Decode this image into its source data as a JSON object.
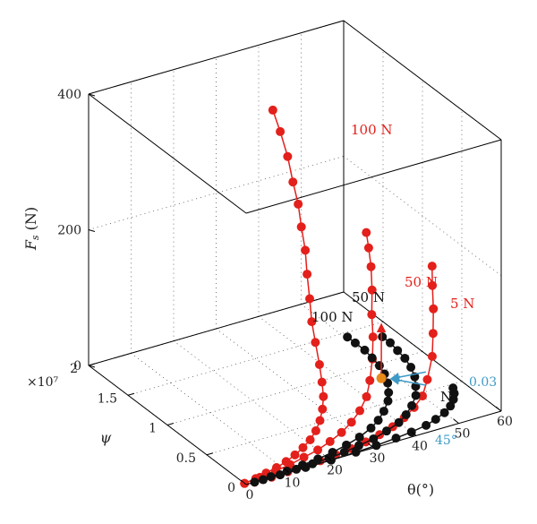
{
  "chart_data": {
    "type": "scatter",
    "title": "",
    "xlabel": "θ(°)",
    "ylabel": "ψ",
    "zlabel": "F_s (N)",
    "xlim": [
      0,
      60
    ],
    "ylim": [
      0,
      2
    ],
    "zlim": [
      0,
      400
    ],
    "x_ticks": [
      "0",
      "10",
      "20",
      "30",
      "40",
      "50",
      "60"
    ],
    "y_ticks": [
      "0",
      "0.5",
      "1",
      "1.5",
      "2"
    ],
    "y_multiplier": "×10⁷",
    "z_ticks": [
      "0",
      "200",
      "400"
    ],
    "grid": true,
    "colors": {
      "red": "#e3201b",
      "black": "#111111",
      "blue": "#3d9ac7",
      "orange": "#e8891a"
    },
    "curve_labels": {
      "red_100": "100 N",
      "red_50": "50 N",
      "red_5": "5 N",
      "black_50": "50 N",
      "black_100": "100 N",
      "black_5": "N",
      "blue_value": "0.03",
      "blue_angle": "45°"
    },
    "series": [
      {
        "color": "red",
        "label_key": "red_100",
        "points": [
          {
            "x": 0,
            "y": 0.02,
            "z": 0
          },
          {
            "x": 3,
            "y": 0.04,
            "z": 0
          },
          {
            "x": 6,
            "y": 0.07,
            "z": 0
          },
          {
            "x": 9,
            "y": 0.1,
            "z": 0
          },
          {
            "x": 12,
            "y": 0.14,
            "z": 0
          },
          {
            "x": 15,
            "y": 0.19,
            "z": 0
          },
          {
            "x": 18,
            "y": 0.25,
            "z": 0
          },
          {
            "x": 21,
            "y": 0.32,
            "z": 0
          },
          {
            "x": 24,
            "y": 0.41,
            "z": 0
          },
          {
            "x": 27,
            "y": 0.52,
            "z": 0
          },
          {
            "x": 30,
            "y": 0.65,
            "z": 0
          },
          {
            "x": 33,
            "y": 0.8,
            "z": 0
          },
          {
            "x": 36,
            "y": 0.98,
            "z": 0
          },
          {
            "x": 38,
            "y": 1.12,
            "z": 10
          },
          {
            "x": 40,
            "y": 1.28,
            "z": 25
          },
          {
            "x": 41,
            "y": 1.38,
            "z": 45
          },
          {
            "x": 42,
            "y": 1.46,
            "z": 70
          },
          {
            "x": 42.5,
            "y": 1.52,
            "z": 100
          },
          {
            "x": 43,
            "y": 1.57,
            "z": 130
          },
          {
            "x": 43,
            "y": 1.62,
            "z": 160
          },
          {
            "x": 43,
            "y": 1.66,
            "z": 190
          },
          {
            "x": 42.5,
            "y": 1.7,
            "z": 220
          },
          {
            "x": 42,
            "y": 1.74,
            "z": 255
          },
          {
            "x": 41,
            "y": 1.78,
            "z": 290
          },
          {
            "x": 40,
            "y": 1.82,
            "z": 320
          }
        ]
      },
      {
        "color": "red",
        "label_key": "red_50",
        "points": [
          {
            "x": 0,
            "y": 0.02,
            "z": 0
          },
          {
            "x": 4,
            "y": 0.04,
            "z": 0
          },
          {
            "x": 8,
            "y": 0.06,
            "z": 0
          },
          {
            "x": 12,
            "y": 0.09,
            "z": 0
          },
          {
            "x": 16,
            "y": 0.13,
            "z": 0
          },
          {
            "x": 20,
            "y": 0.17,
            "z": 0
          },
          {
            "x": 24,
            "y": 0.23,
            "z": 0
          },
          {
            "x": 28,
            "y": 0.3,
            "z": 0
          },
          {
            "x": 32,
            "y": 0.39,
            "z": 0
          },
          {
            "x": 36,
            "y": 0.5,
            "z": 0
          },
          {
            "x": 40,
            "y": 0.63,
            "z": 2
          },
          {
            "x": 43,
            "y": 0.75,
            "z": 10
          },
          {
            "x": 46,
            "y": 0.88,
            "z": 25
          },
          {
            "x": 48,
            "y": 0.98,
            "z": 45
          },
          {
            "x": 49,
            "y": 1.05,
            "z": 70
          },
          {
            "x": 50,
            "y": 1.1,
            "z": 100
          },
          {
            "x": 50.5,
            "y": 1.14,
            "z": 130
          },
          {
            "x": 50.5,
            "y": 1.17,
            "z": 155
          },
          {
            "x": 50.5,
            "y": 1.2,
            "z": 175
          }
        ]
      },
      {
        "color": "red",
        "label_key": "red_5",
        "points": [
          {
            "x": 2,
            "y": 0.0,
            "z": 0
          },
          {
            "x": 6,
            "y": 0.0,
            "z": 0
          },
          {
            "x": 10,
            "y": 0.01,
            "z": 0
          },
          {
            "x": 14,
            "y": 0.02,
            "z": 0
          },
          {
            "x": 18,
            "y": 0.03,
            "z": 0
          },
          {
            "x": 22,
            "y": 0.05,
            "z": 0
          },
          {
            "x": 26,
            "y": 0.07,
            "z": 0
          },
          {
            "x": 30,
            "y": 0.1,
            "z": 0
          },
          {
            "x": 34,
            "y": 0.14,
            "z": 0
          },
          {
            "x": 38,
            "y": 0.19,
            "z": 0
          },
          {
            "x": 42,
            "y": 0.26,
            "z": 0
          },
          {
            "x": 46,
            "y": 0.35,
            "z": 0
          },
          {
            "x": 50,
            "y": 0.46,
            "z": 0
          },
          {
            "x": 53,
            "y": 0.56,
            "z": 10
          },
          {
            "x": 56,
            "y": 0.66,
            "z": 30
          },
          {
            "x": 57.5,
            "y": 0.73,
            "z": 55
          },
          {
            "x": 58.5,
            "y": 0.78,
            "z": 85
          },
          {
            "x": 59,
            "y": 0.82,
            "z": 115
          },
          {
            "x": 59.5,
            "y": 0.85,
            "z": 140
          }
        ]
      },
      {
        "color": "black",
        "label_key": "black_100",
        "points": [
          {
            "x": 2,
            "y": 0.0,
            "z": 0
          },
          {
            "x": 6,
            "y": 0.01,
            "z": 0
          },
          {
            "x": 10,
            "y": 0.02,
            "z": 0
          },
          {
            "x": 14,
            "y": 0.04,
            "z": 0
          },
          {
            "x": 18,
            "y": 0.06,
            "z": 0
          },
          {
            "x": 22,
            "y": 0.09,
            "z": 0
          },
          {
            "x": 26,
            "y": 0.13,
            "z": 0
          },
          {
            "x": 30,
            "y": 0.18,
            "z": 0
          },
          {
            "x": 34,
            "y": 0.25,
            "z": 0
          },
          {
            "x": 37,
            "y": 0.32,
            "z": 0
          },
          {
            "x": 40,
            "y": 0.41,
            "z": 0
          },
          {
            "x": 43,
            "y": 0.52,
            "z": 0
          },
          {
            "x": 45,
            "y": 0.62,
            "z": 0
          },
          {
            "x": 47,
            "y": 0.74,
            "z": 0
          },
          {
            "x": 48.5,
            "y": 0.86,
            "z": 0
          },
          {
            "x": 49.5,
            "y": 0.98,
            "z": 0
          },
          {
            "x": 50,
            "y": 1.1,
            "z": 0
          },
          {
            "x": 50.5,
            "y": 1.22,
            "z": 0
          },
          {
            "x": 50.5,
            "y": 1.34,
            "z": 0
          },
          {
            "x": 50.5,
            "y": 1.44,
            "z": 0
          }
        ]
      },
      {
        "color": "black",
        "label_key": "black_50",
        "points": [
          {
            "x": 4,
            "y": 0.0,
            "z": 0
          },
          {
            "x": 8,
            "y": 0.0,
            "z": 0
          },
          {
            "x": 12,
            "y": 0.01,
            "z": 0
          },
          {
            "x": 16,
            "y": 0.02,
            "z": 0
          },
          {
            "x": 20,
            "y": 0.03,
            "z": 0
          },
          {
            "x": 24,
            "y": 0.05,
            "z": 0
          },
          {
            "x": 28,
            "y": 0.08,
            "z": 0
          },
          {
            "x": 32,
            "y": 0.11,
            "z": 0
          },
          {
            "x": 36,
            "y": 0.16,
            "z": 0
          },
          {
            "x": 40,
            "y": 0.22,
            "z": 0
          },
          {
            "x": 43,
            "y": 0.29,
            "z": 0
          },
          {
            "x": 46,
            "y": 0.38,
            "z": 0
          },
          {
            "x": 49,
            "y": 0.49,
            "z": 0
          },
          {
            "x": 51,
            "y": 0.6,
            "z": 0
          },
          {
            "x": 53,
            "y": 0.72,
            "z": 0
          },
          {
            "x": 54.5,
            "y": 0.85,
            "z": 0
          },
          {
            "x": 55.5,
            "y": 0.98,
            "z": 0
          },
          {
            "x": 56,
            "y": 1.1,
            "z": 0
          },
          {
            "x": 56.5,
            "y": 1.22,
            "z": 0
          },
          {
            "x": 56.5,
            "y": 1.32,
            "z": 0
          }
        ]
      },
      {
        "color": "black",
        "label_key": "black_5",
        "points": [
          {
            "x": 8,
            "y": 0.0,
            "z": 0
          },
          {
            "x": 14,
            "y": 0.0,
            "z": 0
          },
          {
            "x": 20,
            "y": 0.0,
            "z": 0
          },
          {
            "x": 26,
            "y": 0.01,
            "z": 0
          },
          {
            "x": 31,
            "y": 0.02,
            "z": 0
          },
          {
            "x": 36,
            "y": 0.04,
            "z": 0
          },
          {
            "x": 40,
            "y": 0.06,
            "z": 0
          },
          {
            "x": 44,
            "y": 0.09,
            "z": 0
          },
          {
            "x": 47,
            "y": 0.13,
            "z": 0
          },
          {
            "x": 50,
            "y": 0.18,
            "z": 0
          },
          {
            "x": 52.5,
            "y": 0.24,
            "z": 0
          },
          {
            "x": 54.5,
            "y": 0.31,
            "z": 0
          },
          {
            "x": 56,
            "y": 0.38,
            "z": 0
          },
          {
            "x": 57,
            "y": 0.45,
            "z": 0
          }
        ]
      }
    ],
    "markers": [
      {
        "color": "orange",
        "x": 47,
        "y": 0.82,
        "z": 0
      }
    ],
    "arrows": [
      {
        "color": "red",
        "from": {
          "x": 47,
          "y": 0.82,
          "z": 0
        },
        "to": {
          "x": 47,
          "y": 0.82,
          "z": 80
        }
      },
      {
        "color": "blue",
        "from": {
          "x": 56,
          "y": 0.74,
          "z": 0
        },
        "to": {
          "x": 48.5,
          "y": 0.78,
          "z": 0
        }
      },
      {
        "color": "blue",
        "from": {
          "x": 53,
          "y": 0.58,
          "z": 0
        },
        "to": {
          "x": 48.5,
          "y": 0.78,
          "z": 0
        }
      }
    ]
  }
}
